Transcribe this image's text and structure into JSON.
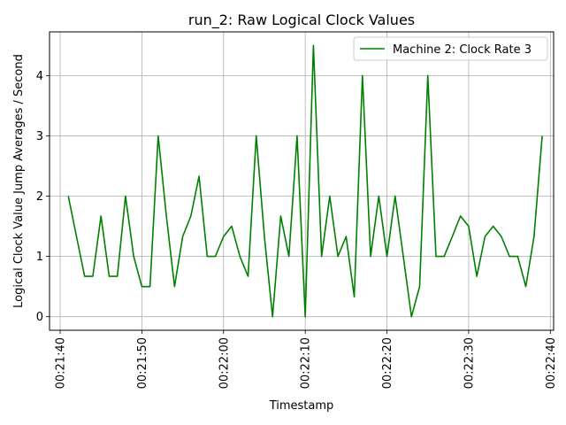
{
  "chart_data": {
    "type": "line",
    "title": "run_2: Raw Logical Clock Values",
    "xlabel": "Timestamp",
    "ylabel": "Logical Clock Value Jump Averages / Second",
    "xlim": [
      -1.3,
      60.4
    ],
    "ylim": [
      -0.225,
      4.725
    ],
    "grid": true,
    "legend_position": "top-right",
    "x_ticks": [
      {
        "value": 0,
        "label": "00:21:40"
      },
      {
        "value": 10,
        "label": "00:21:50"
      },
      {
        "value": 20,
        "label": "00:22:00"
      },
      {
        "value": 30,
        "label": "00:22:10"
      },
      {
        "value": 40,
        "label": "00:22:20"
      },
      {
        "value": 50,
        "label": "00:22:30"
      },
      {
        "value": 60,
        "label": "00:22:40"
      }
    ],
    "y_ticks": [
      {
        "value": 0,
        "label": "0"
      },
      {
        "value": 1,
        "label": "1"
      },
      {
        "value": 2,
        "label": "2"
      },
      {
        "value": 3,
        "label": "3"
      },
      {
        "value": 4,
        "label": "4"
      }
    ],
    "series": [
      {
        "name": "Machine 2: Clock Rate 3",
        "color": "#008000",
        "x": [
          1,
          2,
          3,
          4,
          5,
          6,
          7,
          8,
          9,
          10,
          11,
          12,
          13,
          14,
          15,
          16,
          17,
          18,
          19,
          20,
          21,
          22,
          23,
          24,
          25,
          26,
          27,
          28,
          29,
          30,
          31,
          32,
          33,
          34,
          35,
          36,
          37,
          38,
          39,
          40,
          41,
          42,
          43,
          44,
          45,
          46,
          47,
          48,
          49,
          50,
          51,
          52,
          53,
          54,
          55,
          56,
          57,
          58,
          59
        ],
        "y": [
          2,
          1.33,
          0.67,
          0.67,
          1.67,
          0.67,
          0.67,
          2,
          1,
          0.5,
          0.5,
          3,
          1.67,
          0.5,
          1.33,
          1.67,
          2.33,
          1,
          1,
          1.33,
          1.5,
          1,
          0.67,
          3,
          1.33,
          0,
          1.67,
          1,
          3,
          0,
          4.5,
          1,
          2,
          1,
          1.33,
          0.33,
          4,
          1,
          2,
          1,
          2,
          1,
          0,
          0.5,
          4,
          1,
          1,
          1.33,
          1.67,
          1.5,
          0.67,
          1.33,
          1.5,
          1.33,
          1,
          1,
          0.5,
          1.33,
          3
        ]
      }
    ]
  }
}
